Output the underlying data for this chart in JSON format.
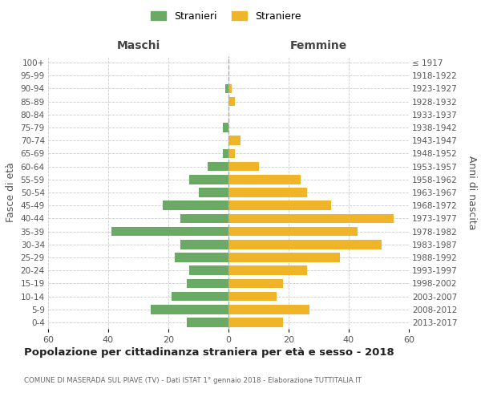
{
  "age_groups": [
    "0-4",
    "5-9",
    "10-14",
    "15-19",
    "20-24",
    "25-29",
    "30-34",
    "35-39",
    "40-44",
    "45-49",
    "50-54",
    "55-59",
    "60-64",
    "65-69",
    "70-74",
    "75-79",
    "80-84",
    "85-89",
    "90-94",
    "95-99",
    "100+"
  ],
  "birth_years": [
    "2013-2017",
    "2008-2012",
    "2003-2007",
    "1998-2002",
    "1993-1997",
    "1988-1992",
    "1983-1987",
    "1978-1982",
    "1973-1977",
    "1968-1972",
    "1963-1967",
    "1958-1962",
    "1953-1957",
    "1948-1952",
    "1943-1947",
    "1938-1942",
    "1933-1937",
    "1928-1932",
    "1923-1927",
    "1918-1922",
    "≤ 1917"
  ],
  "males": [
    14,
    26,
    19,
    14,
    13,
    18,
    16,
    39,
    16,
    22,
    10,
    13,
    7,
    2,
    0,
    2,
    0,
    0,
    1,
    0,
    0
  ],
  "females": [
    18,
    27,
    16,
    18,
    26,
    37,
    51,
    43,
    55,
    34,
    26,
    24,
    10,
    2,
    4,
    0,
    0,
    2,
    1,
    0,
    0
  ],
  "male_color": "#6aaa64",
  "female_color": "#f0b429",
  "background_color": "#ffffff",
  "grid_color": "#cccccc",
  "title": "Popolazione per cittadinanza straniera per età e sesso - 2018",
  "subtitle": "COMUNE DI MASERADA SUL PIAVE (TV) - Dati ISTAT 1° gennaio 2018 - Elaborazione TUTTITALIA.IT",
  "xlabel_left": "Maschi",
  "xlabel_right": "Femmine",
  "ylabel_left": "Fasce di età",
  "ylabel_right": "Anni di nascita",
  "legend_male": "Stranieri",
  "legend_female": "Straniere",
  "xlim": 60
}
